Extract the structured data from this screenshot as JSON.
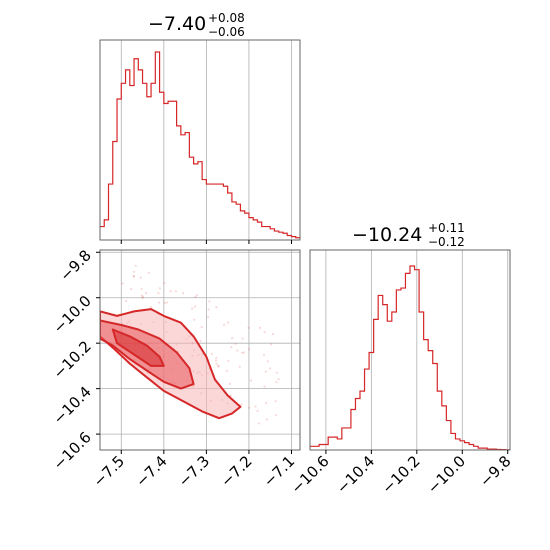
{
  "colors": {
    "series": "#d62728",
    "fill_dark": "#e8565a",
    "fill_light": "#f7b6b8",
    "grid": "#b0b0b0",
    "spine": "#666666"
  },
  "chart_data": [
    {
      "type": "histogram",
      "panel": "marginal-param1",
      "title": {
        "value": "−7.40",
        "upper": "+0.08",
        "lower": "−0.06"
      },
      "xlim": [
        -7.55,
        -7.08
      ],
      "grid": true,
      "bin_edges_start": -7.55,
      "bin_width": 0.01,
      "counts": [
        0.06,
        0.09,
        0.25,
        0.44,
        0.63,
        0.7,
        0.76,
        0.69,
        0.81,
        0.76,
        0.7,
        0.64,
        0.7,
        0.84,
        0.66,
        0.61,
        0.62,
        0.62,
        0.51,
        0.47,
        0.48,
        0.37,
        0.34,
        0.35,
        0.27,
        0.25,
        0.25,
        0.25,
        0.25,
        0.24,
        0.21,
        0.17,
        0.16,
        0.13,
        0.12,
        0.1,
        0.09,
        0.08,
        0.06,
        0.06,
        0.05,
        0.04,
        0.035,
        0.03,
        0.02,
        0.015,
        0.01
      ]
    },
    {
      "type": "histogram",
      "panel": "marginal-param2",
      "title": {
        "value": "−10.24",
        "upper": "+0.11",
        "lower": "−0.12"
      },
      "xlim": [
        -10.67,
        -9.79
      ],
      "xticks": [
        "−10.6",
        "−10.4",
        "−10.2",
        "−10.0",
        "−9.8"
      ],
      "xtick_values": [
        -10.6,
        -10.4,
        -10.2,
        -10.0,
        -9.8
      ],
      "grid": true,
      "bin_edges_start": -10.67,
      "bin_width": 0.02,
      "counts": [
        0.02,
        0.02,
        0.03,
        0.03,
        0.07,
        0.07,
        0.06,
        0.12,
        0.12,
        0.22,
        0.28,
        0.32,
        0.44,
        0.53,
        0.71,
        0.84,
        0.79,
        0.7,
        0.75,
        0.87,
        0.88,
        0.96,
        1.0,
        0.98,
        0.75,
        0.6,
        0.54,
        0.47,
        0.32,
        0.24,
        0.16,
        0.09,
        0.06,
        0.05,
        0.04,
        0.03,
        0.02,
        0.01,
        0.01,
        0.005,
        0.005,
        0.003,
        0.002,
        0.001
      ]
    },
    {
      "type": "scatter-contour",
      "panel": "joint",
      "xlim": [
        -7.55,
        -7.08
      ],
      "ylim": [
        -10.67,
        -9.79
      ],
      "xticks": [
        "−7.5",
        "−7.4",
        "−7.3",
        "−7.2",
        "−7.1"
      ],
      "xtick_values": [
        -7.5,
        -7.4,
        -7.3,
        -7.2,
        -7.1
      ],
      "yticks": [
        "−9.8",
        "−10.0",
        "−10.2",
        "−10.4",
        "−10.6"
      ],
      "ytick_values": [
        -9.8,
        -10.0,
        -10.2,
        -10.4,
        -10.6
      ],
      "grid": true,
      "contours": [
        {
          "level": "outer",
          "points": [
            [
              -7.55,
              -10.06
            ],
            [
              -7.51,
              -10.08
            ],
            [
              -7.47,
              -10.06
            ],
            [
              -7.43,
              -10.05
            ],
            [
              -7.4,
              -10.08
            ],
            [
              -7.36,
              -10.11
            ],
            [
              -7.33,
              -10.17
            ],
            [
              -7.3,
              -10.26
            ],
            [
              -7.28,
              -10.36
            ],
            [
              -7.25,
              -10.43
            ],
            [
              -7.22,
              -10.48
            ],
            [
              -7.24,
              -10.51
            ],
            [
              -7.27,
              -10.53
            ],
            [
              -7.31,
              -10.5
            ],
            [
              -7.35,
              -10.46
            ],
            [
              -7.4,
              -10.41
            ],
            [
              -7.44,
              -10.35
            ],
            [
              -7.48,
              -10.29
            ],
            [
              -7.52,
              -10.22
            ],
            [
              -7.55,
              -10.17
            ]
          ]
        },
        {
          "level": "middle",
          "points": [
            [
              -7.55,
              -10.1
            ],
            [
              -7.5,
              -10.12
            ],
            [
              -7.46,
              -10.14
            ],
            [
              -7.41,
              -10.18
            ],
            [
              -7.37,
              -10.24
            ],
            [
              -7.34,
              -10.31
            ],
            [
              -7.33,
              -10.38
            ],
            [
              -7.36,
              -10.4
            ],
            [
              -7.4,
              -10.37
            ],
            [
              -7.44,
              -10.32
            ],
            [
              -7.48,
              -10.27
            ],
            [
              -7.52,
              -10.21
            ],
            [
              -7.55,
              -10.18
            ]
          ]
        },
        {
          "level": "inner",
          "points": [
            [
              -7.52,
              -10.14
            ],
            [
              -7.48,
              -10.17
            ],
            [
              -7.44,
              -10.21
            ],
            [
              -7.41,
              -10.26
            ],
            [
              -7.4,
              -10.3
            ],
            [
              -7.43,
              -10.3
            ],
            [
              -7.47,
              -10.25
            ],
            [
              -7.51,
              -10.2
            ]
          ]
        }
      ],
      "scatter_count": 140
    }
  ]
}
